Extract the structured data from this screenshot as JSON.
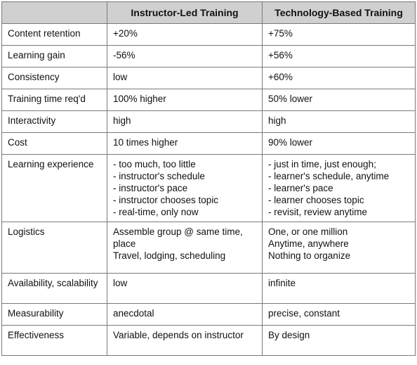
{
  "table": {
    "headers": [
      "",
      "Instructor-Led Training",
      "Technology-Based Training"
    ],
    "rows": [
      {
        "label": "Content retention",
        "instructor": [
          "+20%"
        ],
        "technology": [
          "+75%"
        ]
      },
      {
        "label": "Learning gain",
        "instructor": [
          "-56%"
        ],
        "technology": [
          "+56%"
        ]
      },
      {
        "label": "Consistency",
        "instructor": [
          "low"
        ],
        "technology": [
          "+60%"
        ]
      },
      {
        "label": "Training time req'd",
        "instructor": [
          "100% higher"
        ],
        "technology": [
          "50% lower"
        ]
      },
      {
        "label": "Interactivity",
        "instructor": [
          "high"
        ],
        "technology": [
          "high"
        ]
      },
      {
        "label": "Cost",
        "instructor": [
          "10 times higher"
        ],
        "technology": [
          "90% lower"
        ]
      },
      {
        "label": "Learning experience",
        "instructor": [
          "- too much, too little",
          "- instructor's schedule",
          "- instructor's pace",
          "- instructor chooses topic",
          "- real-time, only now"
        ],
        "technology": [
          "- just in time, just enough;",
          "- learner's schedule, anytime",
          "- learner's pace",
          "- learner chooses topic",
          "- revisit, review anytime"
        ]
      },
      {
        "label": "Logistics",
        "instructor": [
          "Assemble group @ same time, place",
          "Travel, lodging, scheduling"
        ],
        "technology": [
          "One, or one million",
          "Anytime, anywhere",
          "Nothing to organize"
        ]
      },
      {
        "label": "Availability, scalability",
        "instructor": [
          "low"
        ],
        "technology": [
          "infinite"
        ]
      },
      {
        "label": "Measurability",
        "instructor": [
          "anecdotal"
        ],
        "technology": [
          "precise, constant"
        ]
      },
      {
        "label": "Effectiveness",
        "instructor": [
          "Variable, depends on instructor"
        ],
        "technology": [
          "By design"
        ]
      }
    ]
  },
  "colors": {
    "header_background": "#d0d0d0",
    "border": "#7a7a7a"
  }
}
